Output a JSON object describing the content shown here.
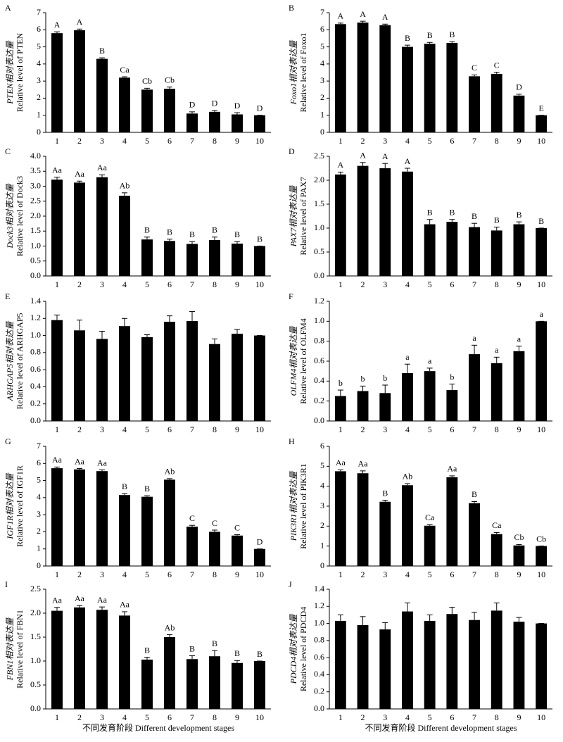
{
  "chart_data": [
    {
      "type": "bar",
      "panel": "A",
      "ylabel": [
        "PTEN相对表达量",
        "Relative level of PTEN"
      ],
      "color": "#000000",
      "categories": [
        "1",
        "2",
        "3",
        "4",
        "5",
        "6",
        "7",
        "8",
        "9",
        "10"
      ],
      "values": [
        5.8,
        5.97,
        4.3,
        3.2,
        2.5,
        2.55,
        1.1,
        1.2,
        1.05,
        1.0
      ],
      "errors": [
        0.08,
        0.07,
        0.06,
        0.05,
        0.08,
        0.1,
        0.1,
        0.08,
        0.1,
        0
      ],
      "letters": [
        "A",
        "A",
        "B",
        "Ca",
        "Cb",
        "Cb",
        "D",
        "D",
        "D",
        "D"
      ],
      "ylim": [
        0,
        7
      ],
      "yticks": [
        0,
        1,
        2,
        3,
        4,
        5,
        6,
        7
      ]
    },
    {
      "type": "bar",
      "panel": "B",
      "ylabel": [
        "Foxo1相对表达量",
        "Relative level of Foxo1"
      ],
      "color": "#000000",
      "categories": [
        "1",
        "2",
        "3",
        "4",
        "5",
        "6",
        "7",
        "8",
        "9",
        "10"
      ],
      "values": [
        6.33,
        6.42,
        6.27,
        5.0,
        5.18,
        5.23,
        3.28,
        3.42,
        2.15,
        1.0
      ],
      "errors": [
        0.06,
        0.08,
        0.06,
        0.1,
        0.08,
        0.07,
        0.08,
        0.1,
        0.08,
        0
      ],
      "letters": [
        "A",
        "A",
        "A",
        "B",
        "B",
        "B",
        "C",
        "C",
        "D",
        "E"
      ],
      "ylim": [
        0,
        7
      ],
      "yticks": [
        0,
        1,
        2,
        3,
        4,
        5,
        6,
        7
      ]
    },
    {
      "type": "bar",
      "panel": "C",
      "ylabel": [
        "Dock3相对表达量",
        "Relative level of Dock3"
      ],
      "color": "#000000",
      "categories": [
        "1",
        "2",
        "3",
        "4",
        "5",
        "6",
        "7",
        "8",
        "9",
        "10"
      ],
      "values": [
        3.22,
        3.12,
        3.3,
        2.68,
        1.22,
        1.17,
        1.07,
        1.2,
        1.08,
        1.0
      ],
      "errors": [
        0.08,
        0.05,
        0.08,
        0.1,
        0.08,
        0.06,
        0.08,
        0.1,
        0.07,
        0
      ],
      "letters": [
        "Aa",
        "Aa",
        "Aa",
        "Ab",
        "B",
        "B",
        "B",
        "B",
        "B",
        "B"
      ],
      "ylim": [
        0,
        4
      ],
      "yticks": [
        {
          "value": 0,
          "label": "0.0"
        },
        {
          "value": 0.5,
          "label": "0.5"
        },
        {
          "value": 1,
          "label": "1.0"
        },
        {
          "value": 1.5,
          "label": "1.5"
        },
        {
          "value": 2,
          "label": "2.0"
        },
        {
          "value": 2.5,
          "label": "2.5"
        },
        {
          "value": 3,
          "label": "3.0"
        },
        {
          "value": 3.5,
          "label": "3.5"
        },
        {
          "value": 4,
          "label": "4.0"
        }
      ]
    },
    {
      "type": "bar",
      "panel": "D",
      "ylabel": [
        "PAX7相对表达量",
        "Relative level of PAX7"
      ],
      "color": "#000000",
      "categories": [
        "1",
        "2",
        "3",
        "4",
        "5",
        "6",
        "7",
        "8",
        "9",
        "10"
      ],
      "values": [
        2.12,
        2.3,
        2.25,
        2.18,
        1.08,
        1.13,
        1.02,
        0.95,
        1.08,
        1.0
      ],
      "errors": [
        0.05,
        0.07,
        0.1,
        0.07,
        0.1,
        0.05,
        0.08,
        0.07,
        0.05,
        0
      ],
      "letters": [
        "A",
        "A",
        "A",
        "A",
        "B",
        "B",
        "B",
        "B",
        "B",
        "B"
      ],
      "ylim": [
        0,
        2.5
      ],
      "yticks": [
        {
          "value": 0,
          "label": "0.0"
        },
        {
          "value": 0.5,
          "label": "0.5"
        },
        {
          "value": 1,
          "label": "1.0"
        },
        {
          "value": 1.5,
          "label": "1.5"
        },
        {
          "value": 2,
          "label": "2.0"
        },
        {
          "value": 2.5,
          "label": "2.5"
        }
      ]
    },
    {
      "type": "bar",
      "panel": "E",
      "ylabel": [
        "ARHGAP5相对表达量",
        "Relative level of ARHGAP5"
      ],
      "color": "#000000",
      "categories": [
        "1",
        "2",
        "3",
        "4",
        "5",
        "6",
        "7",
        "8",
        "9",
        "10"
      ],
      "values": [
        1.18,
        1.06,
        0.96,
        1.11,
        0.98,
        1.16,
        1.17,
        0.9,
        1.02,
        1.0
      ],
      "errors": [
        0.06,
        0.12,
        0.09,
        0.09,
        0.03,
        0.07,
        0.11,
        0.06,
        0.05,
        0
      ],
      "ylim": [
        0,
        1.4
      ],
      "yticks": [
        {
          "value": 0,
          "label": "0.0"
        },
        {
          "value": 0.2,
          "label": "0.2"
        },
        {
          "value": 0.4,
          "label": "0.4"
        },
        {
          "value": 0.6,
          "label": "0.6"
        },
        {
          "value": 0.8,
          "label": "0.8"
        },
        {
          "value": 1,
          "label": "1.0"
        },
        {
          "value": 1.2,
          "label": "1.2"
        },
        {
          "value": 1.4,
          "label": "1.4"
        }
      ]
    },
    {
      "type": "bar",
      "panel": "F",
      "ylabel": [
        "OLFM4相对表达量",
        "Relative level of OLFM4"
      ],
      "color": "#000000",
      "categories": [
        "1",
        "2",
        "3",
        "4",
        "5",
        "6",
        "7",
        "8",
        "9",
        "10"
      ],
      "values": [
        0.25,
        0.3,
        0.28,
        0.48,
        0.5,
        0.31,
        0.67,
        0.58,
        0.7,
        1.0
      ],
      "errors": [
        0.06,
        0.05,
        0.08,
        0.09,
        0.03,
        0.06,
        0.09,
        0.06,
        0.05,
        0
      ],
      "letters": [
        "b",
        "b",
        "b",
        "a",
        "a",
        "b",
        "a",
        "a",
        "a",
        "a"
      ],
      "ylim": [
        0,
        1.2
      ],
      "yticks": [
        {
          "value": 0,
          "label": "0.0"
        },
        {
          "value": 0.2,
          "label": "0.2"
        },
        {
          "value": 0.4,
          "label": "0.4"
        },
        {
          "value": 0.6,
          "label": "0.6"
        },
        {
          "value": 0.8,
          "label": "0.8"
        },
        {
          "value": 1,
          "label": "1.0"
        },
        {
          "value": 1.2,
          "label": "1.2"
        }
      ]
    },
    {
      "type": "bar",
      "panel": "G",
      "ylabel": [
        "IGF1R相对表达量",
        "Relative level of IGF1R"
      ],
      "color": "#000000",
      "categories": [
        "1",
        "2",
        "3",
        "4",
        "5",
        "6",
        "7",
        "8",
        "9",
        "10"
      ],
      "values": [
        5.72,
        5.65,
        5.55,
        4.15,
        4.05,
        5.05,
        2.3,
        2.0,
        1.78,
        1.0
      ],
      "errors": [
        0.07,
        0.05,
        0.07,
        0.08,
        0.06,
        0.06,
        0.08,
        0.1,
        0.05,
        0
      ],
      "letters": [
        "Aa",
        "Aa",
        "Aa",
        "B",
        "B",
        "Ab",
        "C",
        "C",
        "C",
        "D"
      ],
      "ylim": [
        0,
        7
      ],
      "yticks": [
        0,
        1,
        2,
        3,
        4,
        5,
        6,
        7
      ]
    },
    {
      "type": "bar",
      "panel": "H",
      "ylabel": [
        "PIK3R1相对表达量",
        "Relative level of PIK3R1"
      ],
      "color": "#000000",
      "categories": [
        "1",
        "2",
        "3",
        "4",
        "5",
        "6",
        "7",
        "8",
        "9",
        "10"
      ],
      "values": [
        4.75,
        4.65,
        3.22,
        4.05,
        2.02,
        4.45,
        3.15,
        1.6,
        1.03,
        1.0
      ],
      "errors": [
        0.07,
        0.12,
        0.08,
        0.08,
        0.05,
        0.07,
        0.08,
        0.08,
        0.05,
        0
      ],
      "letters": [
        "Aa",
        "Aa",
        "B",
        "Ab",
        "Ca",
        "Aa",
        "B",
        "Ca",
        "Cb",
        "Cb"
      ],
      "ylim": [
        0,
        6
      ],
      "yticks": [
        0,
        1,
        2,
        3,
        4,
        5,
        6
      ]
    },
    {
      "type": "bar",
      "panel": "I",
      "ylabel": [
        "FBN1相对表达量",
        "Relative level of FBN1"
      ],
      "color": "#000000",
      "categories": [
        "1",
        "2",
        "3",
        "4",
        "5",
        "6",
        "7",
        "8",
        "9",
        "10"
      ],
      "values": [
        2.05,
        2.12,
        2.07,
        1.95,
        1.03,
        1.5,
        1.04,
        1.1,
        0.96,
        1.0
      ],
      "errors": [
        0.07,
        0.04,
        0.06,
        0.08,
        0.05,
        0.05,
        0.07,
        0.12,
        0.05,
        0
      ],
      "letters": [
        "Aa",
        "Aa",
        "Aa",
        "Aa",
        "B",
        "Ab",
        "B",
        "B",
        "B",
        "B"
      ],
      "ylim": [
        0,
        2.5
      ],
      "yticks": [
        {
          "value": 0,
          "label": "0.0"
        },
        {
          "value": 0.5,
          "label": "0.5"
        },
        {
          "value": 1,
          "label": "1.0"
        },
        {
          "value": 1.5,
          "label": "1.5"
        },
        {
          "value": 2,
          "label": "2.0"
        },
        {
          "value": 2.5,
          "label": "2.5"
        }
      ],
      "xlabel": "不同发育阶段 Different development stages"
    },
    {
      "type": "bar",
      "panel": "J",
      "ylabel": [
        "PDCD4相对表达量",
        "Relative level of PDCD4"
      ],
      "color": "#000000",
      "categories": [
        "1",
        "2",
        "3",
        "4",
        "5",
        "6",
        "7",
        "8",
        "9",
        "10"
      ],
      "values": [
        1.03,
        0.98,
        0.93,
        1.14,
        1.03,
        1.11,
        1.04,
        1.15,
        1.02,
        1.0
      ],
      "errors": [
        0.07,
        0.1,
        0.08,
        0.1,
        0.07,
        0.08,
        0.09,
        0.09,
        0.05,
        0
      ],
      "ylim": [
        0,
        1.4
      ],
      "yticks": [
        {
          "value": 0,
          "label": "0.0"
        },
        {
          "value": 0.2,
          "label": "0.2"
        },
        {
          "value": 0.4,
          "label": "0.4"
        },
        {
          "value": 0.6,
          "label": "0.6"
        },
        {
          "value": 0.8,
          "label": "0.8"
        },
        {
          "value": 1,
          "label": "1.0"
        },
        {
          "value": 1.2,
          "label": "1.2"
        },
        {
          "value": 1.4,
          "label": "1.4"
        }
      ],
      "xlabel": "不同发育阶段 Different development stages"
    }
  ]
}
